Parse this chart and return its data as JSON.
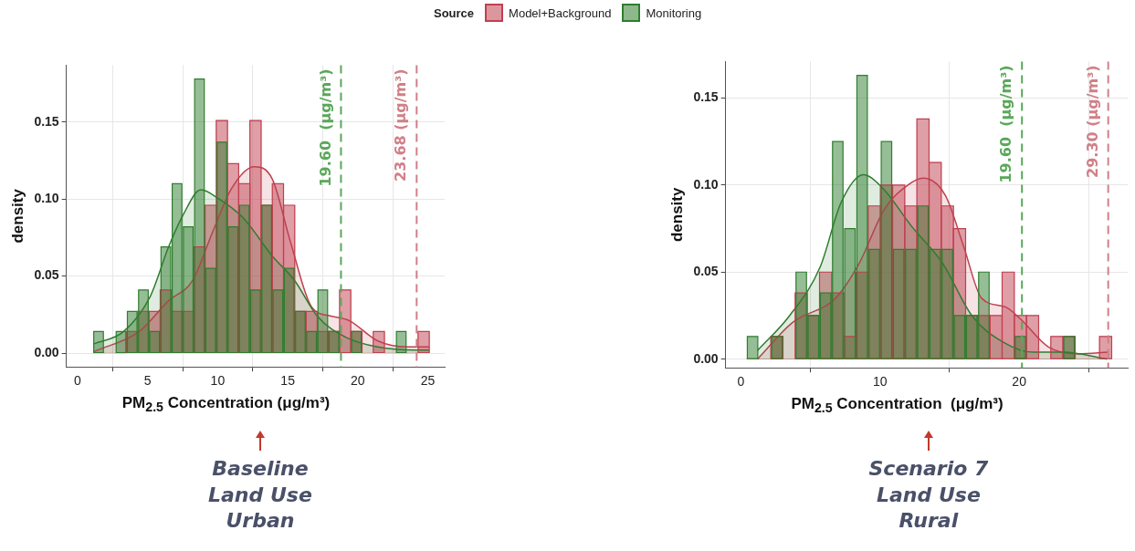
{
  "chart_data": [
    {
      "type": "histogram",
      "xlabel": "PM$_{2.5}$ Concentration (μg/m³)",
      "ylabel": "density",
      "legend": "top",
      "legend_title": "Source",
      "bins": [
        1.1,
        1.9,
        2.7,
        3.5,
        4.3,
        5.1,
        5.9,
        6.7,
        7.5,
        8.3,
        9.1,
        9.9,
        10.7,
        11.5,
        12.3,
        13.1,
        13.9,
        14.7,
        15.5,
        16.3,
        17.1,
        17.9,
        18.7,
        19.5,
        20.3,
        21.1,
        21.9,
        22.7,
        23.5,
        24.3,
        25.1
      ],
      "series": [
        {
          "name": "Model+Background",
          "color": "#c0404f",
          "values": [
            0,
            0,
            0,
            0.014,
            0.027,
            0.027,
            0.041,
            0.027,
            0.027,
            0.069,
            0.096,
            0.151,
            0.123,
            0.11,
            0.151,
            0.096,
            0.11,
            0.096,
            0.027,
            0.027,
            0.014,
            0.014,
            0.041,
            0.014,
            0,
            0.014,
            0,
            0,
            0,
            0.014
          ]
        },
        {
          "name": "Monitoring",
          "color": "#2e7d2e",
          "values": [
            0.014,
            0,
            0.014,
            0.027,
            0.041,
            0.014,
            0.069,
            0.11,
            0.082,
            0.178,
            0.055,
            0.137,
            0.082,
            0.096,
            0.041,
            0.096,
            0.041,
            0.055,
            0.027,
            0.014,
            0.041,
            0.014,
            0,
            0.014,
            0,
            0,
            0,
            0.014,
            0,
            0
          ]
        },
        {
          "type": "area",
          "color": "#c0404f",
          "x": [
            1.17,
            4.4,
            6.5,
            8.2,
            9.7,
            11.0,
            12.6,
            13.9,
            15.2,
            16.7,
            18.1,
            19.4,
            21.4,
            23.5,
            25.1
          ],
          "values": [
            0.001,
            0.014,
            0.034,
            0.047,
            0.08,
            0.107,
            0.121,
            0.113,
            0.072,
            0.03,
            0.024,
            0.021,
            0.008,
            0.004,
            0.004
          ]
        },
        {
          "type": "area",
          "color": "#2e7d2e",
          "x": [
            1.17,
            3.29,
            5.2,
            6.5,
            7.55,
            8.8,
            10.1,
            11.8,
            13.9,
            15.5,
            17.1,
            19.2,
            21.4,
            24.1,
            25.1
          ],
          "values": [
            0.006,
            0.014,
            0.037,
            0.069,
            0.09,
            0.106,
            0.1,
            0.088,
            0.063,
            0.047,
            0.024,
            0.01,
            0.004,
            0.002,
            0.002
          ]
        }
      ],
      "xlim": [
        -0.8,
        26.2
      ],
      "xticks": [
        0,
        5,
        10,
        15,
        20,
        25
      ],
      "ylim": [
        -0.009,
        0.187
      ],
      "yticks": [
        {
          "value": 0,
          "label": "0.00"
        },
        {
          "value": 0.05,
          "label": "0.05"
        },
        {
          "value": 0.1,
          "label": "0.10"
        },
        {
          "value": 0.15,
          "label": "0.15"
        }
      ],
      "grid": true,
      "ref_lines": [
        {
          "axis": "x",
          "value": 18.8,
          "label": "19.60  (μg/m³)",
          "color": "#5aa85a",
          "line_style": "dashed"
        },
        {
          "axis": "x",
          "value": 24.2,
          "label": "23.68 (μg/m³)",
          "color": "#d08088",
          "line_style": "dashed"
        }
      ],
      "annotations": [
        "Baseline\nLand Use\nUrban"
      ]
    },
    {
      "type": "histogram",
      "xlabel": "PM$_{2.5}$ Concentration  (μg/m³)",
      "ylabel": "density",
      "bins": [
        0.4,
        1.275,
        2.15,
        3.025,
        3.9,
        4.775,
        5.65,
        6.525,
        7.4,
        8.275,
        9.15,
        10.025,
        10.9,
        11.775,
        12.65,
        13.525,
        14.4,
        15.275,
        16.15,
        17.025,
        17.9,
        18.775,
        19.65,
        20.525,
        21.4,
        22.275,
        23.15,
        24.025,
        24.9,
        25.775,
        26.65
      ],
      "series": [
        {
          "color": "#c0404f",
          "values": [
            0,
            0,
            0.013,
            0,
            0.038,
            0.025,
            0.05,
            0.038,
            0.013,
            0.05,
            0.088,
            0.1,
            0.1,
            0.088,
            0.138,
            0.113,
            0.088,
            0.075,
            0.025,
            0.025,
            0.025,
            0.05,
            0.025,
            0.025,
            0,
            0.013,
            0.013,
            0,
            0,
            0.013
          ]
        },
        {
          "color": "#2e7d2e",
          "values": [
            0.013,
            0,
            0.013,
            0,
            0.05,
            0.025,
            0.038,
            0.125,
            0.075,
            0.163,
            0.063,
            0.125,
            0.063,
            0.063,
            0.088,
            0.063,
            0.063,
            0.025,
            0.025,
            0.05,
            0,
            0,
            0.013,
            0,
            0,
            0,
            0.013,
            0,
            0,
            0
          ]
        },
        {
          "type": "area",
          "color": "#c0404f",
          "x": [
            1.2,
            3.7,
            6.8,
            8.5,
            10.3,
            12.0,
            13.1,
            14.7,
            16.0,
            17.3,
            19.0,
            20.1,
            22.1,
            24.3,
            26.4
          ],
          "values": [
            0,
            0.021,
            0.035,
            0.055,
            0.086,
            0.1,
            0.104,
            0.094,
            0.065,
            0.035,
            0.03,
            0.023,
            0.007,
            0.003,
            0.004
          ]
        },
        {
          "type": "area",
          "color": "#2e7d2e",
          "x": [
            1.2,
            3.5,
            5.7,
            7.2,
            8.8,
            10.1,
            12.3,
            14.5,
            16.6,
            18.8,
            21.0,
            23.2,
            26.3
          ],
          "values": [
            0.005,
            0.025,
            0.053,
            0.09,
            0.106,
            0.099,
            0.076,
            0.055,
            0.025,
            0.01,
            0.004,
            0.004,
            0
          ]
        }
      ],
      "xlim": [
        -1.1,
        27.8
      ],
      "xticks": [
        0,
        10,
        20
      ],
      "ylim": [
        -0.005,
        0.171
      ],
      "yticks": [
        {
          "value": 0,
          "label": "0.00"
        },
        {
          "value": 0.05,
          "label": "0.05"
        },
        {
          "value": 0.1,
          "label": "0.10"
        },
        {
          "value": 0.15,
          "label": "0.15"
        }
      ],
      "grid": true,
      "ref_lines": [
        {
          "axis": "x",
          "value": 20.2,
          "label": "19.60  (μg/m³)",
          "color": "#5aa85a",
          "line_style": "dashed"
        },
        {
          "axis": "x",
          "value": 26.4,
          "label": "29.30 (μg/m³)",
          "color": "#d08088",
          "line_style": "dashed"
        }
      ],
      "annotations": [
        "Scenario 7\nLand Use\nRural"
      ]
    }
  ]
}
